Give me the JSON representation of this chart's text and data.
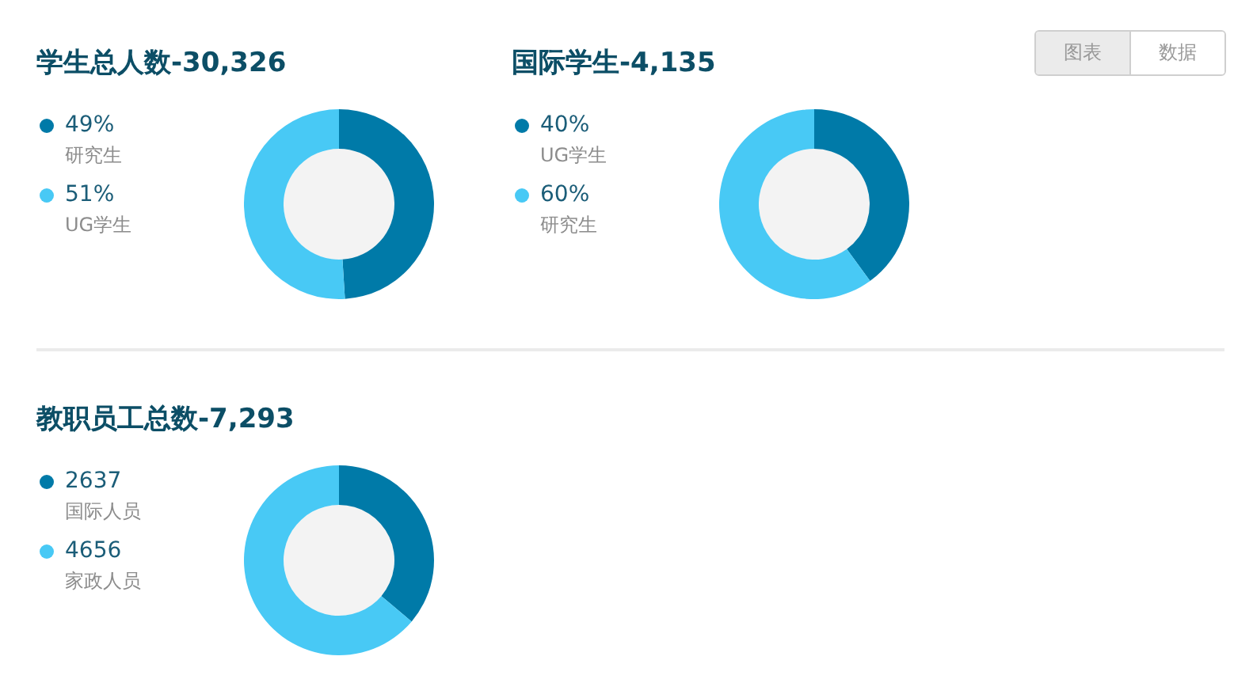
{
  "chart_data": [
    {
      "type": "donut",
      "title": "学生总人数-30,326",
      "categories": [
        "研究生",
        "UG学生"
      ],
      "values": [
        49,
        51
      ],
      "value_labels": [
        "49%",
        "51%"
      ],
      "colors": [
        "#007aa8",
        "#48c9f5"
      ],
      "legend": "left"
    },
    {
      "type": "donut",
      "title": "国际学生-4,135",
      "categories": [
        "UG学生",
        "研究生"
      ],
      "values": [
        40,
        60
      ],
      "value_labels": [
        "40%",
        "60%"
      ],
      "colors": [
        "#007aa8",
        "#48c9f5"
      ],
      "legend": "left"
    },
    {
      "type": "other",
      "annotations": [
        "图表",
        "数据"
      ]
    },
    {
      "type": "donut",
      "title": "教职员工总数-7,293",
      "categories": [
        "国际人员",
        "家政人员"
      ],
      "values": [
        2637,
        4656
      ],
      "data_labels": true,
      "colors": [
        "#007aa8",
        "#48c9f5"
      ],
      "legend": "left"
    }
  ]
}
